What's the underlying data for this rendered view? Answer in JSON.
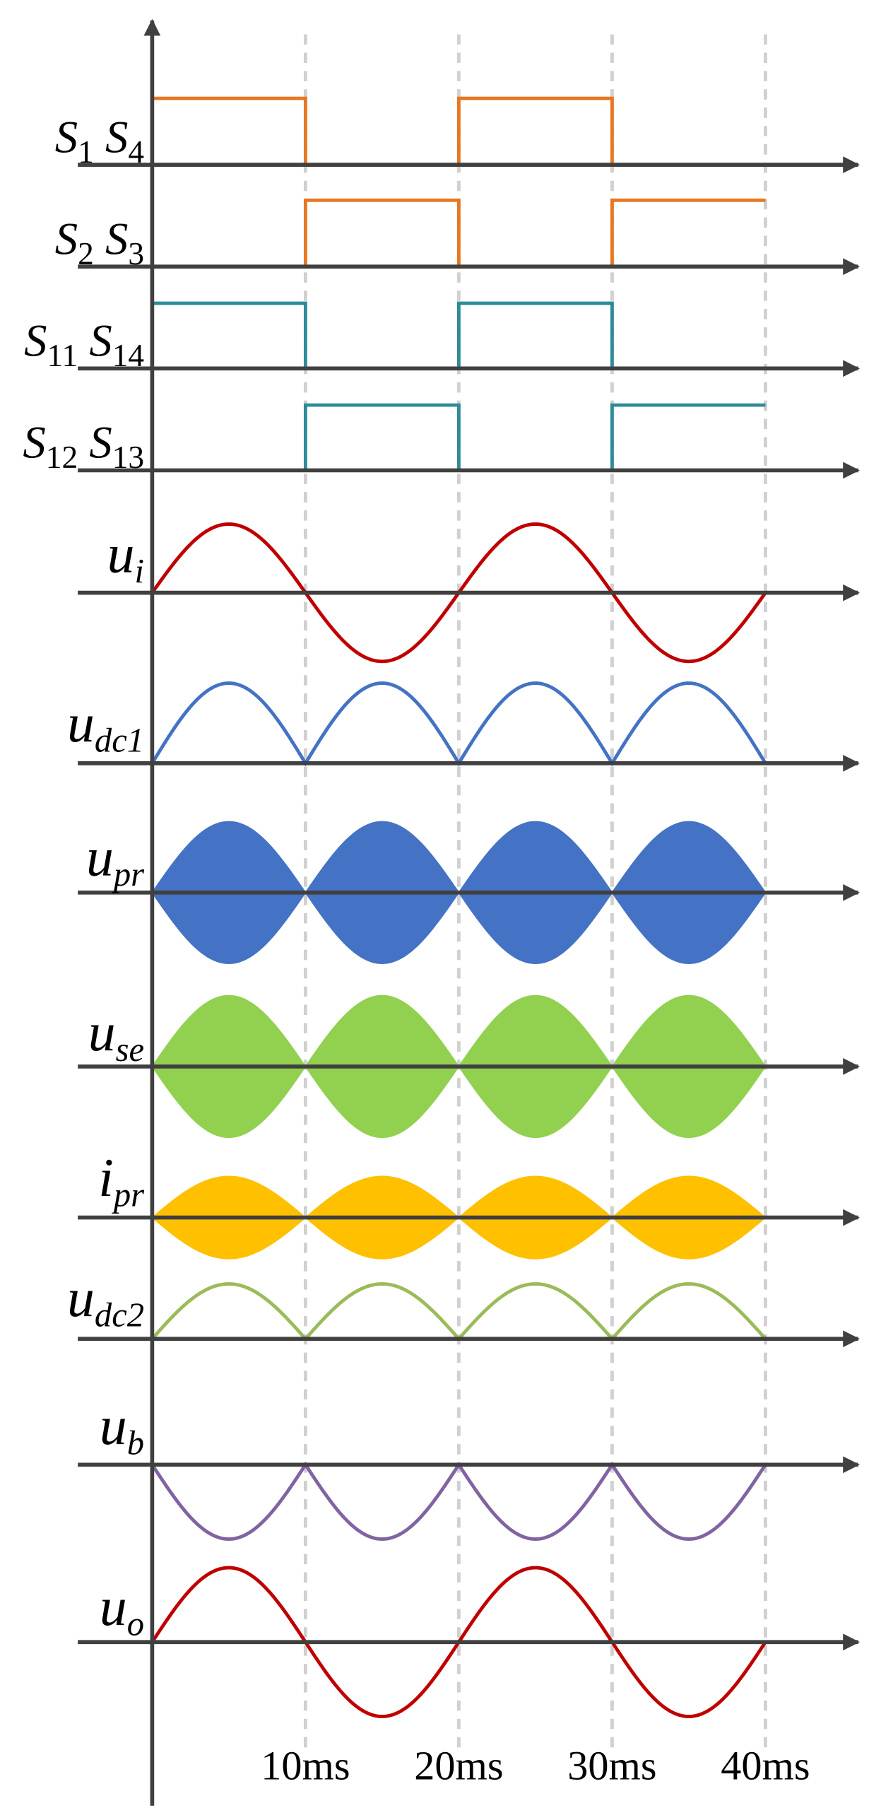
{
  "rows": [
    {
      "label": [
        {
          "symbol": "S",
          "subscript": "1"
        },
        {
          "symbol": "S",
          "subscript": "4"
        }
      ]
    },
    {
      "label": [
        {
          "symbol": "S",
          "subscript": "2"
        },
        {
          "symbol": "S",
          "subscript": "3"
        }
      ]
    },
    {
      "label": [
        {
          "symbol": "S",
          "subscript": "11"
        },
        {
          "symbol": "S",
          "subscript": "14"
        }
      ]
    },
    {
      "label": [
        {
          "symbol": "S",
          "subscript": "12"
        },
        {
          "symbol": "S",
          "subscript": "13"
        }
      ]
    },
    {
      "label": [
        {
          "symbol": "u",
          "subscript": "i"
        }
      ]
    },
    {
      "label": [
        {
          "symbol": "u",
          "subscript": "dc1"
        }
      ]
    },
    {
      "label": [
        {
          "symbol": "u",
          "subscript": "pr"
        }
      ]
    },
    {
      "label": [
        {
          "symbol": "u",
          "subscript": "se"
        }
      ]
    },
    {
      "label": [
        {
          "symbol": "i",
          "subscript": "pr"
        }
      ]
    },
    {
      "label": [
        {
          "symbol": "u",
          "subscript": "dc2"
        }
      ]
    },
    {
      "label": [
        {
          "symbol": "u",
          "subscript": "b"
        }
      ]
    },
    {
      "label": [
        {
          "symbol": "u",
          "subscript": "o"
        }
      ]
    }
  ],
  "time_labels": [
    "10ms",
    "20ms",
    "30ms",
    "40ms"
  ]
}
